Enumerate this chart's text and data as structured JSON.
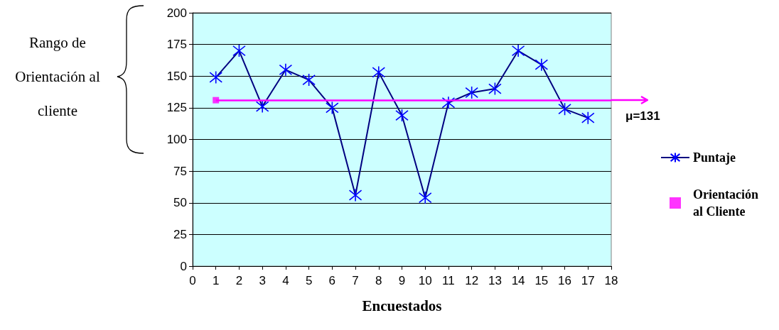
{
  "chart_data": {
    "type": "line",
    "xlabel": "Encuestados",
    "annotations": [
      "Rango de Orientación al cliente"
    ],
    "xlim": [
      0,
      18
    ],
    "xticks": [
      0,
      1,
      2,
      3,
      4,
      5,
      6,
      7,
      8,
      9,
      10,
      11,
      12,
      13,
      14,
      15,
      16,
      17,
      18
    ],
    "ylim": [
      0,
      200
    ],
    "yticks": [
      0,
      25,
      50,
      75,
      100,
      125,
      150,
      175,
      200
    ],
    "grid": "y",
    "legend": "right",
    "series": [
      {
        "name": "Puntaje",
        "color": "#000080",
        "marker": "cross",
        "x": [
          1,
          2,
          3,
          4,
          5,
          6,
          7,
          8,
          9,
          10,
          11,
          12,
          13,
          14,
          15,
          16,
          17
        ],
        "values": [
          149,
          170,
          126,
          155,
          147,
          125,
          56,
          153,
          119,
          54,
          129,
          137,
          140,
          170,
          159,
          124,
          117
        ]
      },
      {
        "name": "Orientación al Cliente",
        "type": "scatter",
        "color": "#ff00ff",
        "marker": "square",
        "x": [
          1
        ],
        "values": [
          131
        ]
      }
    ],
    "ref_lines": [
      {
        "axis": "y",
        "value": 131,
        "label": "μ=131",
        "color": "#ff00ff"
      }
    ]
  }
}
